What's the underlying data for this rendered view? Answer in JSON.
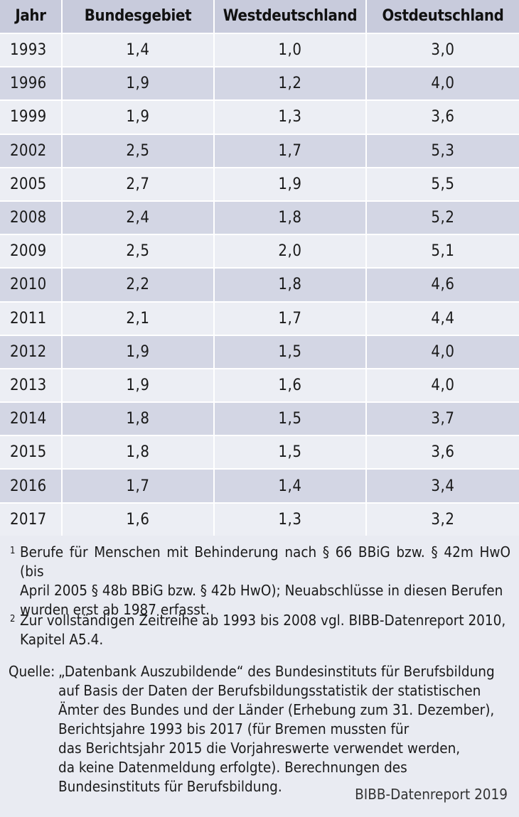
{
  "table": {
    "headers": [
      "Jahr",
      "Bundesgebiet",
      "Westdeutschland",
      "Ostdeutschland"
    ],
    "rows": [
      [
        "1993",
        "1,4",
        "1,0",
        "3,0"
      ],
      [
        "1996",
        "1,9",
        "1,2",
        "4,0"
      ],
      [
        "1999",
        "1,9",
        "1,3",
        "3,6"
      ],
      [
        "2002",
        "2,5",
        "1,7",
        "5,3"
      ],
      [
        "2005",
        "2,7",
        "1,9",
        "5,5"
      ],
      [
        "2008",
        "2,4",
        "1,8",
        "5,2"
      ],
      [
        "2009",
        "2,5",
        "2,0",
        "5,1"
      ],
      [
        "2010",
        "2,2",
        "1,8",
        "4,6"
      ],
      [
        "2011",
        "2,1",
        "1,7",
        "4,4"
      ],
      [
        "2012",
        "1,9",
        "1,5",
        "4,0"
      ],
      [
        "2013",
        "1,9",
        "1,6",
        "4,0"
      ],
      [
        "2014",
        "1,8",
        "1,5",
        "3,7"
      ],
      [
        "2015",
        "1,8",
        "1,5",
        "3,6"
      ],
      [
        "2016",
        "1,7",
        "1,4",
        "3,4"
      ],
      [
        "2017",
        "1,6",
        "1,3",
        "3,2"
      ]
    ]
  },
  "footnotes": {
    "fn1_marker": "1",
    "fn1_lines": [
      "Berufe für Menschen mit Behinderung nach § 66 BBiG bzw. § 42m HwO (bis",
      "April 2005 § 48b BBiG bzw. § 42b HwO); Neuabschlüsse in diesen Berufen",
      "wurden erst ab 1987 erfasst."
    ],
    "fn2_marker": "2",
    "fn2_lines": [
      "Zur vollständigen Zeitreihe ab 1993 bis 2008 vgl. BIBB-Datenreport 2010,",
      "Kapitel A5.4."
    ]
  },
  "source": {
    "label": "Quelle:",
    "lines": [
      "„Datenbank Auszubildende“ des Bundesinstituts für Berufsbildung",
      "auf Basis der Daten der Berufsbildungsstatistik der statistischen",
      "Ämter des Bundes und der Länder (Erhebung zum 31. Dezember),",
      "Berichtsjahre 1993 bis 2017 (für Bremen mussten für",
      "das Berichtsjahr 2015 die Vorjahreswerte verwendet werden,",
      "da keine Datenmeldung erfolgte). Berechnungen des",
      "Bundesinstituts für Berufsbildung."
    ]
  },
  "credit": "BIBB-Datenreport 2019"
}
